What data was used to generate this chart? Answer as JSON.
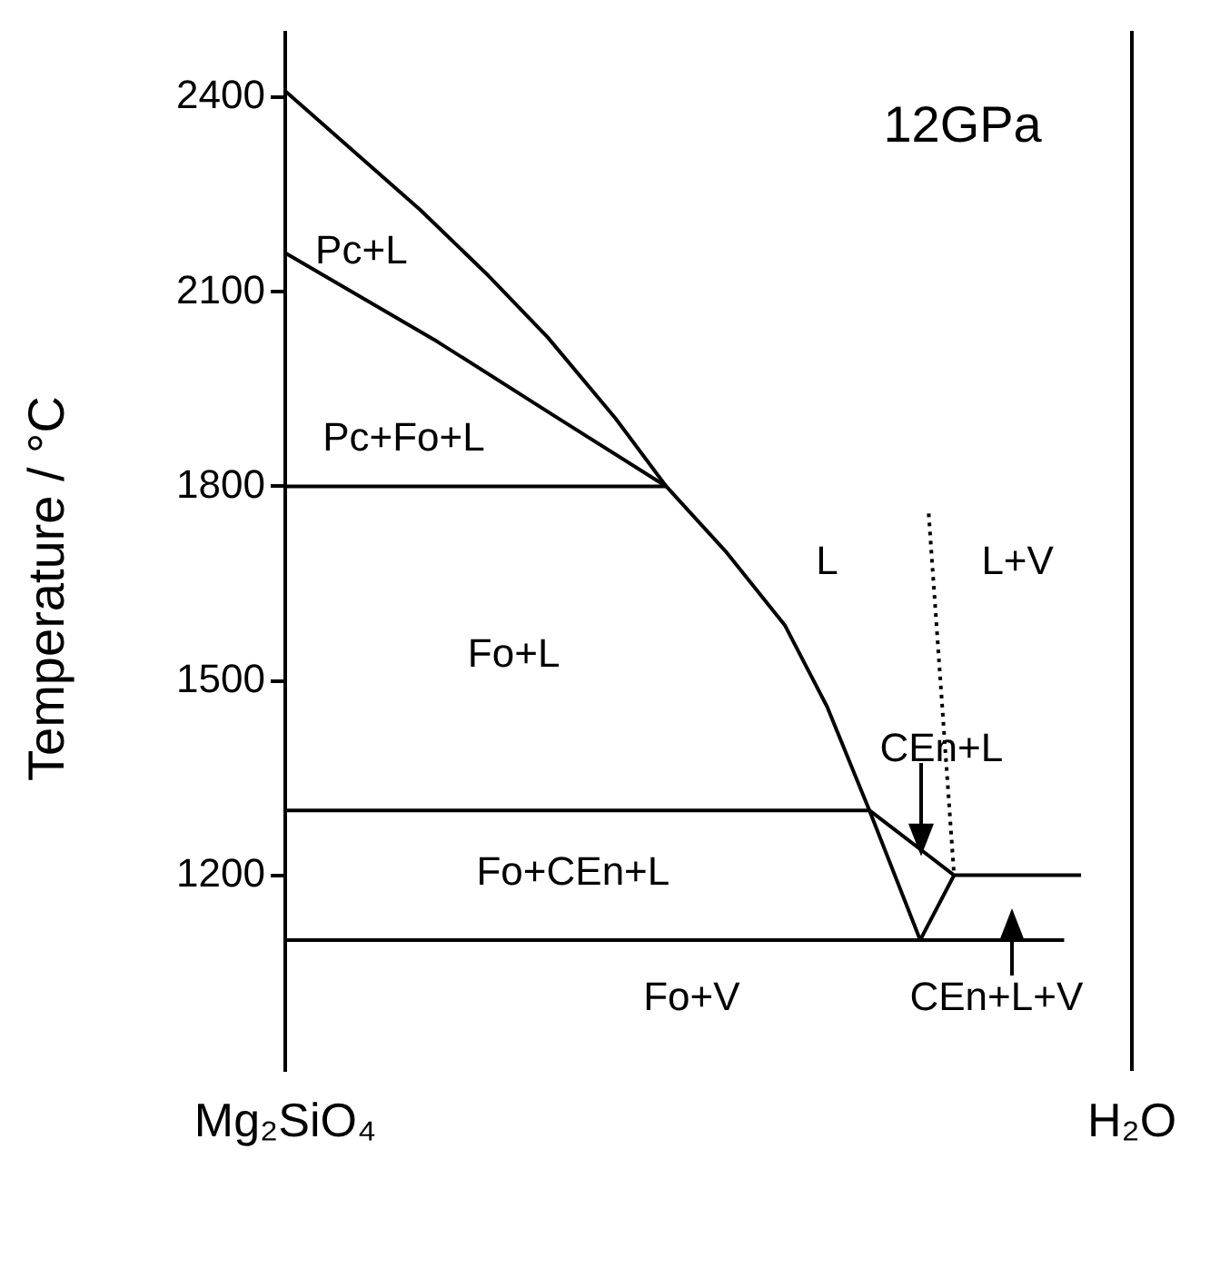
{
  "chart_data": {
    "type": "line",
    "ylabel": "Temperature / °C",
    "categories": [
      "Mg₂SiO₄",
      null,
      null,
      null,
      null,
      null,
      null,
      null,
      null,
      null,
      null,
      null,
      null,
      null,
      null,
      null,
      null,
      null,
      null,
      null,
      null,
      null,
      null,
      null,
      null,
      null,
      null,
      null,
      null,
      null,
      null,
      null,
      null,
      null,
      null,
      null,
      null,
      null,
      null,
      null,
      null,
      null,
      null,
      null,
      null,
      null,
      null,
      null,
      null,
      null,
      null,
      null,
      null,
      null,
      null,
      null,
      null,
      null,
      null,
      null,
      null,
      null,
      null,
      null,
      null,
      null,
      null,
      null,
      null,
      null,
      null,
      null,
      null,
      null,
      null,
      null,
      null,
      null,
      null,
      null,
      null,
      null,
      null,
      null,
      null,
      null,
      null,
      null,
      null,
      null,
      null,
      null,
      null,
      null,
      null,
      null,
      null,
      null,
      null,
      null,
      "H₂O"
    ],
    "ylim": [
      900,
      2500
    ],
    "yticks": [
      1200,
      1500,
      1800,
      2100,
      2400
    ],
    "grid": false,
    "legend": false,
    "marker": "none",
    "series": [
      {
        "color": "#000000",
        "values": [
          2410,
          null,
          null,
          null,
          null,
          null,
          null,
          null,
          null,
          null,
          null,
          null,
          null,
          null,
          null,
          null,
          2226,
          null,
          null,
          null,
          null,
          null,
          null,
          null,
          2125,
          null,
          null,
          null,
          null,
          null,
          null,
          2030,
          null,
          null,
          null,
          null,
          null,
          null,
          null,
          1905,
          null,
          null,
          null,
          null,
          null,
          1800,
          null,
          null,
          null,
          null,
          null,
          null,
          1700,
          null,
          null,
          null,
          null,
          null,
          null,
          1586,
          null,
          null,
          null,
          null,
          1460,
          null,
          null,
          null,
          null,
          1300,
          null,
          null,
          null,
          null,
          null,
          null,
          null,
          null,
          null,
          1200,
          null,
          null,
          null,
          null,
          null,
          null,
          null,
          null,
          null,
          null,
          null,
          null,
          null,
          null,
          1200,
          null,
          null,
          null,
          null,
          null,
          null
        ]
      },
      {
        "color": "#000000",
        "values": [
          2160,
          null,
          null,
          null,
          null,
          null,
          null,
          null,
          null,
          null,
          null,
          null,
          null,
          null,
          null,
          null,
          null,
          null,
          2023,
          null,
          null,
          null,
          null,
          null,
          null,
          null,
          null,
          null,
          null,
          null,
          null,
          null,
          1907,
          null,
          null,
          null,
          null,
          null,
          null,
          null,
          null,
          null,
          null,
          null,
          null,
          1800,
          null,
          null,
          null,
          null,
          null,
          null,
          null,
          null,
          null,
          null,
          null,
          null,
          null,
          null,
          null,
          null,
          null,
          null,
          null,
          null,
          null,
          null,
          null,
          null,
          null,
          null,
          null,
          null,
          null,
          null,
          null,
          null,
          null,
          null,
          null,
          null,
          null,
          null,
          null,
          null,
          null,
          null,
          null,
          null,
          null,
          null,
          null,
          null,
          null,
          null,
          null,
          null,
          null,
          null,
          null
        ]
      },
      {
        "color": "#000000",
        "values": [
          1800,
          null,
          null,
          null,
          null,
          null,
          null,
          null,
          null,
          null,
          null,
          null,
          null,
          null,
          null,
          null,
          null,
          null,
          null,
          null,
          null,
          null,
          null,
          null,
          null,
          null,
          null,
          null,
          null,
          null,
          null,
          null,
          null,
          null,
          null,
          null,
          null,
          null,
          null,
          null,
          null,
          null,
          null,
          null,
          null,
          1800,
          null,
          null,
          null,
          null,
          null,
          null,
          null,
          null,
          null,
          null,
          null,
          null,
          null,
          null,
          null,
          null,
          null,
          null,
          null,
          null,
          null,
          null,
          null,
          null,
          null,
          null,
          null,
          null,
          null,
          null,
          null,
          null,
          null,
          null,
          null,
          null,
          null,
          null,
          null,
          null,
          null,
          null,
          null,
          null,
          null,
          null,
          null,
          null,
          null,
          null,
          null,
          null,
          null,
          null,
          null
        ]
      },
      {
        "color": "#000000",
        "values": [
          1300,
          null,
          null,
          null,
          null,
          null,
          null,
          null,
          null,
          null,
          null,
          null,
          null,
          null,
          null,
          null,
          null,
          null,
          null,
          null,
          null,
          null,
          null,
          null,
          null,
          null,
          null,
          null,
          null,
          null,
          null,
          null,
          null,
          null,
          null,
          null,
          null,
          null,
          null,
          null,
          null,
          null,
          null,
          null,
          null,
          null,
          null,
          null,
          null,
          null,
          null,
          null,
          null,
          null,
          null,
          null,
          null,
          null,
          null,
          null,
          null,
          null,
          null,
          null,
          null,
          null,
          null,
          null,
          null,
          1300,
          null,
          null,
          null,
          null,
          null,
          1100,
          null,
          null,
          null,
          1200,
          null,
          null,
          null,
          null,
          null,
          null,
          null,
          null,
          null,
          null,
          null,
          null,
          null,
          null,
          null,
          null,
          null,
          null,
          null,
          null,
          null
        ]
      },
      {
        "color": "#000000",
        "values": [
          1100,
          null,
          null,
          null,
          null,
          null,
          null,
          null,
          null,
          null,
          null,
          null,
          null,
          null,
          null,
          null,
          null,
          null,
          null,
          null,
          null,
          null,
          null,
          null,
          null,
          null,
          null,
          null,
          null,
          null,
          null,
          null,
          null,
          null,
          null,
          null,
          null,
          null,
          null,
          null,
          null,
          null,
          null,
          null,
          null,
          null,
          null,
          null,
          null,
          null,
          null,
          null,
          null,
          null,
          null,
          null,
          null,
          null,
          null,
          null,
          null,
          null,
          null,
          null,
          null,
          null,
          null,
          null,
          null,
          null,
          null,
          null,
          null,
          null,
          null,
          null,
          null,
          null,
          null,
          null,
          null,
          null,
          null,
          null,
          null,
          null,
          null,
          null,
          null,
          null,
          null,
          null,
          1100,
          null,
          null,
          null,
          null,
          null,
          null,
          null,
          null
        ]
      },
      {
        "color": "#000000",
        "line_style": "dotted",
        "values": [
          null,
          null,
          null,
          null,
          null,
          null,
          null,
          null,
          null,
          null,
          null,
          null,
          null,
          null,
          null,
          null,
          null,
          null,
          null,
          null,
          null,
          null,
          null,
          null,
          null,
          null,
          null,
          null,
          null,
          null,
          null,
          null,
          null,
          null,
          null,
          null,
          null,
          null,
          null,
          null,
          null,
          null,
          null,
          null,
          null,
          null,
          null,
          null,
          null,
          null,
          null,
          null,
          null,
          null,
          null,
          null,
          null,
          null,
          null,
          null,
          null,
          null,
          null,
          null,
          null,
          null,
          null,
          null,
          null,
          null,
          null,
          null,
          null,
          null,
          null,
          null,
          1758,
          null,
          null,
          1200,
          null,
          null,
          null,
          null,
          null,
          null,
          null,
          null,
          null,
          null,
          null,
          null,
          null,
          null,
          null,
          null,
          null,
          null,
          null,
          null,
          null
        ]
      }
    ],
    "annotations": [
      "12GPa",
      "Pc+L",
      "Pc+Fo+L",
      "L",
      "L+V",
      "Fo+L",
      "CEn+L",
      "Fo+CEn+L",
      "Fo+V",
      "CEn+L+V"
    ]
  }
}
